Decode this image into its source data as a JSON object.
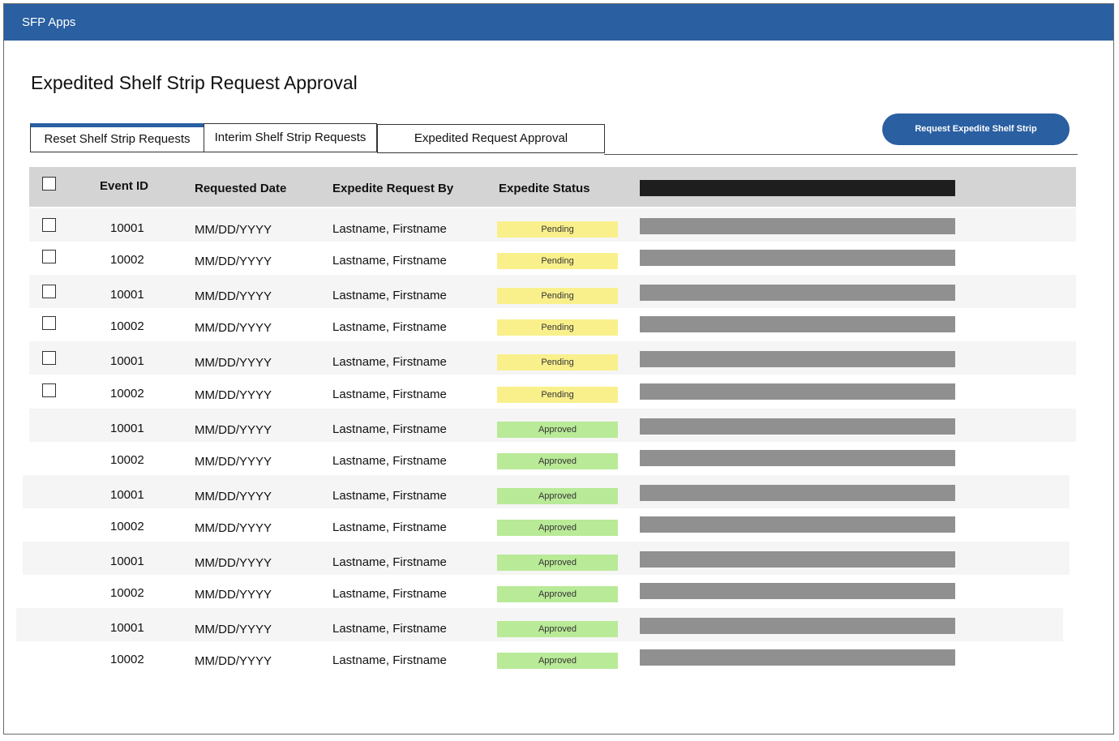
{
  "app": {
    "name": "SFP Apps"
  },
  "page": {
    "title": "Expedited Shelf Strip Request Approval"
  },
  "tabs": [
    {
      "label": "Reset Shelf Strip Requests",
      "active": true
    },
    {
      "label": "Interim Shelf Strip Requests",
      "active": false
    },
    {
      "label": "Expedited Request Approval",
      "active": false
    }
  ],
  "actions": {
    "request_button_label": "Request Expedite Shelf Strip"
  },
  "table": {
    "columns": [
      "Event ID",
      "Requested Date",
      "Expedite Request By",
      "Expedite Status"
    ],
    "rows": [
      {
        "event_id": "10001",
        "date": "MM/DD/YYYY",
        "requested_by": "Lastname, Firstname",
        "status": "Pending",
        "selectable": true
      },
      {
        "event_id": "10002",
        "date": "MM/DD/YYYY",
        "requested_by": "Lastname, Firstname",
        "status": "Pending",
        "selectable": true
      },
      {
        "event_id": "10001",
        "date": "MM/DD/YYYY",
        "requested_by": "Lastname, Firstname",
        "status": "Pending",
        "selectable": true
      },
      {
        "event_id": "10002",
        "date": "MM/DD/YYYY",
        "requested_by": "Lastname, Firstname",
        "status": "Pending",
        "selectable": true
      },
      {
        "event_id": "10001",
        "date": "MM/DD/YYYY",
        "requested_by": "Lastname, Firstname",
        "status": "Pending",
        "selectable": true
      },
      {
        "event_id": "10002",
        "date": "MM/DD/YYYY",
        "requested_by": "Lastname, Firstname",
        "status": "Pending",
        "selectable": true
      },
      {
        "event_id": "10001",
        "date": "MM/DD/YYYY",
        "requested_by": "Lastname, Firstname",
        "status": "Approved",
        "selectable": false
      },
      {
        "event_id": "10002",
        "date": "MM/DD/YYYY",
        "requested_by": "Lastname, Firstname",
        "status": "Approved",
        "selectable": false
      },
      {
        "event_id": "10001",
        "date": "MM/DD/YYYY",
        "requested_by": "Lastname, Firstname",
        "status": "Approved",
        "selectable": false
      },
      {
        "event_id": "10002",
        "date": "MM/DD/YYYY",
        "requested_by": "Lastname, Firstname",
        "status": "Approved",
        "selectable": false
      },
      {
        "event_id": "10001",
        "date": "MM/DD/YYYY",
        "requested_by": "Lastname, Firstname",
        "status": "Approved",
        "selectable": false
      },
      {
        "event_id": "10002",
        "date": "MM/DD/YYYY",
        "requested_by": "Lastname, Firstname",
        "status": "Approved",
        "selectable": false
      },
      {
        "event_id": "10001",
        "date": "MM/DD/YYYY",
        "requested_by": "Lastname, Firstname",
        "status": "Approved",
        "selectable": false
      },
      {
        "event_id": "10002",
        "date": "MM/DD/YYYY",
        "requested_by": "Lastname, Firstname",
        "status": "Approved",
        "selectable": false
      }
    ]
  },
  "colors": {
    "brand": "#2a5fa1",
    "pending": "#f9f08c",
    "approved": "#b9ea97",
    "header_bg": "#d4d4d4"
  }
}
